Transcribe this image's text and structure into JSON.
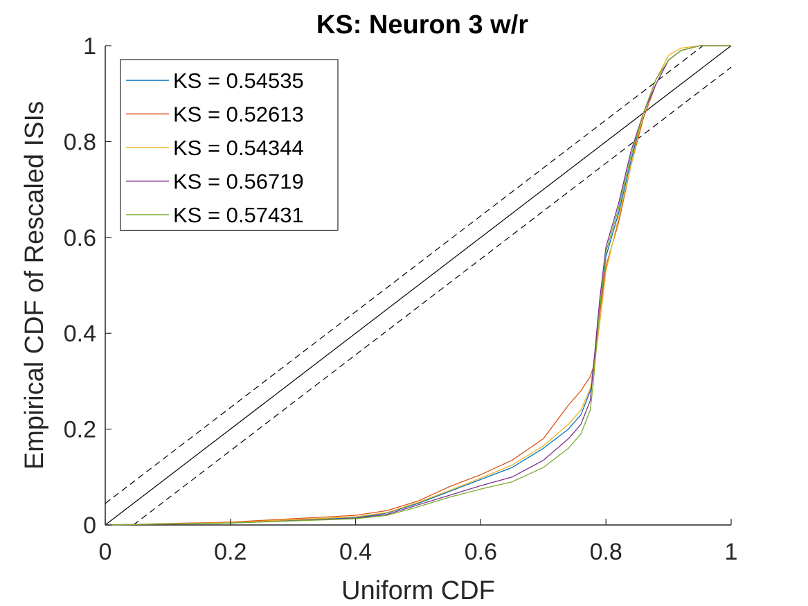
{
  "chart_data": {
    "type": "line",
    "title": "KS: Neuron 3 w/r",
    "xlabel": "Uniform CDF",
    "ylabel": "Empirical CDF of Rescaled ISIs",
    "xlim": [
      0,
      1
    ],
    "ylim": [
      0,
      1
    ],
    "xticks": [
      "0",
      "0.2",
      "0.4",
      "0.6",
      "0.8",
      "1"
    ],
    "yticks": [
      "0",
      "0.2",
      "0.4",
      "0.6",
      "0.8",
      "1"
    ],
    "grid": false,
    "legend_position": "top-left",
    "reference_lines": [
      {
        "style": "solid",
        "color": "#000000",
        "x": [
          0,
          1
        ],
        "y": [
          0,
          1
        ]
      },
      {
        "style": "dashed",
        "color": "#000000",
        "x": [
          0,
          0.955
        ],
        "y": [
          0.045,
          1
        ]
      },
      {
        "style": "dashed",
        "color": "#000000",
        "x": [
          0.045,
          1
        ],
        "y": [
          0,
          0.955
        ]
      }
    ],
    "series": [
      {
        "name": "KS = 0.54535",
        "color": "#0072BD",
        "x": [
          0,
          0.2,
          0.4,
          0.45,
          0.5,
          0.55,
          0.6,
          0.65,
          0.7,
          0.74,
          0.76,
          0.775,
          0.78,
          0.79,
          0.8,
          0.82,
          0.84,
          0.86,
          0.88,
          0.9,
          0.92,
          0.95,
          1
        ],
        "y": [
          0,
          0.005,
          0.015,
          0.025,
          0.045,
          0.07,
          0.095,
          0.12,
          0.16,
          0.2,
          0.23,
          0.28,
          0.33,
          0.45,
          0.56,
          0.65,
          0.76,
          0.86,
          0.93,
          0.97,
          0.99,
          1,
          1
        ]
      },
      {
        "name": "KS = 0.52613",
        "color": "#D95319",
        "x": [
          0,
          0.2,
          0.4,
          0.45,
          0.5,
          0.55,
          0.6,
          0.65,
          0.7,
          0.74,
          0.76,
          0.775,
          0.78,
          0.79,
          0.8,
          0.82,
          0.84,
          0.86,
          0.88,
          0.9,
          0.92,
          0.95,
          1
        ],
        "y": [
          0,
          0.006,
          0.02,
          0.03,
          0.05,
          0.08,
          0.105,
          0.135,
          0.18,
          0.25,
          0.28,
          0.31,
          0.33,
          0.44,
          0.54,
          0.63,
          0.75,
          0.85,
          0.92,
          0.97,
          0.99,
          1,
          1
        ]
      },
      {
        "name": "KS = 0.54344",
        "color": "#EDB120",
        "x": [
          0,
          0.2,
          0.4,
          0.45,
          0.5,
          0.55,
          0.6,
          0.65,
          0.7,
          0.74,
          0.76,
          0.775,
          0.78,
          0.79,
          0.8,
          0.82,
          0.84,
          0.86,
          0.88,
          0.9,
          0.92,
          0.95,
          1
        ],
        "y": [
          0,
          0.005,
          0.017,
          0.026,
          0.047,
          0.072,
          0.098,
          0.125,
          0.165,
          0.21,
          0.24,
          0.285,
          0.32,
          0.42,
          0.53,
          0.64,
          0.75,
          0.86,
          0.93,
          0.98,
          0.995,
          1,
          1
        ]
      },
      {
        "name": "KS = 0.56719",
        "color": "#7E2F8E",
        "x": [
          0,
          0.2,
          0.4,
          0.45,
          0.5,
          0.55,
          0.6,
          0.65,
          0.7,
          0.74,
          0.76,
          0.775,
          0.78,
          0.79,
          0.8,
          0.82,
          0.84,
          0.86,
          0.88,
          0.9,
          0.92,
          0.95,
          1
        ],
        "y": [
          0,
          0.004,
          0.014,
          0.022,
          0.042,
          0.062,
          0.082,
          0.1,
          0.135,
          0.18,
          0.21,
          0.26,
          0.33,
          0.47,
          0.58,
          0.67,
          0.78,
          0.86,
          0.92,
          0.97,
          0.99,
          1,
          1
        ]
      },
      {
        "name": "KS = 0.57431",
        "color": "#77AC30",
        "x": [
          0,
          0.2,
          0.4,
          0.45,
          0.5,
          0.55,
          0.6,
          0.65,
          0.7,
          0.74,
          0.76,
          0.775,
          0.78,
          0.79,
          0.8,
          0.82,
          0.84,
          0.86,
          0.88,
          0.9,
          0.92,
          0.95,
          1
        ],
        "y": [
          0,
          0.004,
          0.013,
          0.02,
          0.038,
          0.058,
          0.075,
          0.09,
          0.12,
          0.16,
          0.19,
          0.24,
          0.3,
          0.45,
          0.57,
          0.66,
          0.77,
          0.86,
          0.93,
          0.97,
          0.99,
          1,
          1
        ]
      }
    ]
  }
}
